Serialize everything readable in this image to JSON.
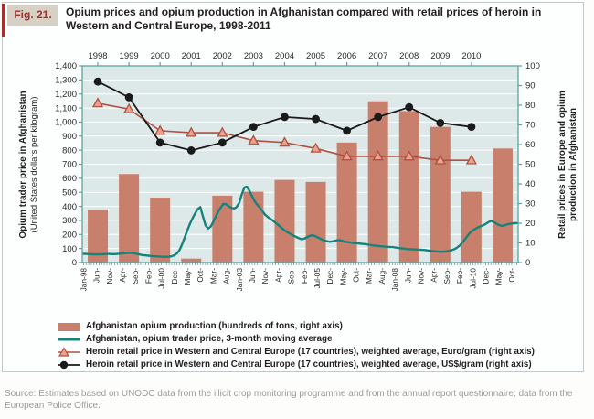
{
  "figure": {
    "tag": "Fig. 21.",
    "title": "Opium prices and opium production in Afghanistan compared with retail prices of heroin in Western and Central Europe, 1998-2011"
  },
  "source": "Source: Estimates based on UNODC data from the illicit crop monitoring programme and from the annual report questionnaire; data from the European Police Office.",
  "colors": {
    "bar": "#c8806d",
    "opium_price_line": "#15837b",
    "euro_line": "#ae5244",
    "euro_marker_fill": "#eba28d",
    "usd_line": "#1a1a1a",
    "plot_bg": "#dde8e8",
    "axis": "#5aa5a2",
    "grid": "#ffffff",
    "text": "#231f20",
    "fig_tag_bg": "#d7d0c5",
    "fig_tag_text": "#a3312d",
    "source_text": "#9b9b9b"
  },
  "chart_data": {
    "type": "combo",
    "title": "Opium prices and opium production in Afghanistan compared with retail prices of heroin in Western and Central Europe, 1998-2011",
    "grid": true,
    "legend_position": "bottom",
    "left_axis": {
      "title": "Opium trader price in Afghanistan",
      "subtitle": "(United States dollars per kilogram)",
      "range": [
        0,
        1400
      ],
      "tick_step": 100,
      "tick_labels": [
        "0",
        "100",
        "200",
        "300",
        "400",
        "500",
        "600",
        "700",
        "800",
        "900",
        "1,000",
        "1,100",
        "1,200",
        "1,300",
        "1,400"
      ]
    },
    "right_axis": {
      "title_line1": "Retail prices in Europe and opium",
      "title_line2": "production in Afghanistan",
      "range": [
        0,
        100
      ],
      "tick_step": 10,
      "tick_labels": [
        "0",
        "10",
        "20",
        "30",
        "40",
        "50",
        "60",
        "70",
        "80",
        "90",
        "100"
      ]
    },
    "top_axis_years": [
      "1998",
      "1999",
      "2000",
      "2001",
      "2002",
      "2003",
      "2004",
      "2005",
      "2006",
      "2007",
      "2008",
      "2009",
      "2010"
    ],
    "x_month_tick_labels": [
      "Jan-98",
      "Jun-",
      "Nov-",
      "Apr-",
      "Sep-",
      "Feb-",
      "Jul-00",
      "Dec-",
      "May-",
      "Oct-",
      "Mar-",
      "Aug-",
      "Jan-03",
      "Jun-",
      "Nov-",
      "Apr-",
      "Sep-",
      "Feb-",
      "Jul-05",
      "Dec-",
      "May-",
      "Oct-",
      "Mar-",
      "Aug-",
      "Jan-08",
      "Jun-",
      "Nov-",
      "Apr-",
      "Sep-",
      "Feb-",
      "Jul-10",
      "Dec-",
      "May-",
      "Oct-"
    ],
    "x_month_tick_positions": [
      0,
      5,
      10,
      15,
      20,
      25,
      30,
      35,
      40,
      45,
      50,
      55,
      60,
      65,
      70,
      75,
      80,
      85,
      90,
      95,
      100,
      105,
      110,
      115,
      120,
      125,
      130,
      135,
      140,
      145,
      150,
      155,
      160,
      165
    ],
    "x_months_total": 168,
    "legend": [
      "Afghanistan opium production (hundreds of tons, right axis)",
      "Afghanistan, opium trader price, 3-month moving average",
      "Heroin retail price in Western and Central Europe (17 countries), weighted average, Euro/gram (right axis)",
      "Heroin retail price in Western and Central Europe (17 countries), weighted average, US$/gram (right axis)"
    ],
    "series": [
      {
        "name": "Afghanistan opium production (hundreds of tons, right axis)",
        "type": "bar",
        "axis": "right",
        "years": [
          1998,
          1999,
          2000,
          2001,
          2002,
          2003,
          2004,
          2005,
          2006,
          2007,
          2008,
          2009,
          2010,
          2011
        ],
        "values": [
          27,
          45,
          33,
          2,
          34,
          36,
          42,
          41,
          61,
          82,
          77,
          69,
          36,
          58
        ]
      },
      {
        "name": "Afghanistan, opium trader price, 3-month moving average",
        "type": "line",
        "axis": "left",
        "unit": "US$ per kilogram",
        "start_month": "Jan-1998",
        "monthly_values": [
          62,
          61,
          60,
          59,
          58,
          58,
          58,
          59,
          60,
          61,
          61,
          60,
          60,
          61,
          63,
          65,
          67,
          69,
          69,
          67,
          64,
          60,
          56,
          53,
          51,
          49,
          47,
          45,
          44,
          43,
          42,
          41,
          41,
          42,
          45,
          52,
          65,
          90,
          130,
          180,
          230,
          275,
          315,
          350,
          380,
          395,
          330,
          265,
          242,
          255,
          290,
          330,
          365,
          395,
          418,
          415,
          400,
          390,
          385,
          395,
          425,
          485,
          535,
          540,
          510,
          470,
          435,
          410,
          390,
          365,
          340,
          325,
          312,
          298,
          283,
          268,
          252,
          237,
          222,
          211,
          201,
          191,
          182,
          173,
          166,
          170,
          179,
          188,
          194,
          190,
          181,
          172,
          163,
          156,
          151,
          148,
          151,
          155,
          160,
          158,
          153,
          148,
          145,
          142,
          140,
          138,
          136,
          134,
          132,
          130,
          127,
          124,
          121,
          119,
          117,
          115,
          113,
          112,
          111,
          110,
          108,
          105,
          102,
          100,
          98,
          96,
          95,
          94,
          93,
          92,
          91,
          90,
          88,
          85,
          83,
          81,
          79,
          78,
          77,
          78,
          80,
          84,
          89,
          96,
          107,
          122,
          142,
          166,
          191,
          214,
          228,
          240,
          250,
          258,
          266,
          275,
          288,
          296,
          290,
          278,
          268,
          262,
          264,
          270,
          275,
          278,
          280,
          281
        ]
      },
      {
        "name": "Heroin retail price in Western and Central Europe (17 countries), weighted average, Euro/gram (right axis)",
        "type": "line-triangle",
        "axis": "right",
        "years": [
          1998,
          1999,
          2000,
          2001,
          2002,
          2003,
          2004,
          2005,
          2006,
          2007,
          2008,
          2009,
          2010
        ],
        "values": [
          81,
          78,
          67,
          66,
          66,
          62,
          61,
          58,
          54,
          54,
          54,
          52,
          52
        ]
      },
      {
        "name": "Heroin retail price in Western and Central Europe (17 countries), weighted average, US$/gram (right axis)",
        "type": "line-circle",
        "axis": "right",
        "years": [
          1998,
          1999,
          2000,
          2001,
          2002,
          2003,
          2004,
          2005,
          2006,
          2007,
          2008,
          2009,
          2010
        ],
        "values": [
          92,
          84,
          61,
          57,
          61,
          69,
          74,
          73,
          67,
          74,
          79,
          71,
          69
        ]
      }
    ]
  }
}
